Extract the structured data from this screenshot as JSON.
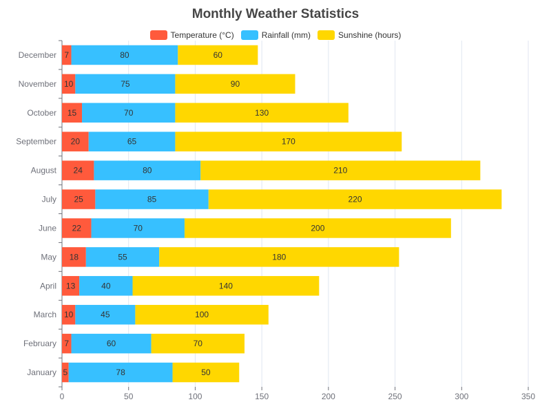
{
  "chart_data": {
    "type": "bar",
    "orientation": "horizontal",
    "stacked": true,
    "title": "Monthly Weather Statistics",
    "categories": [
      "January",
      "February",
      "March",
      "April",
      "May",
      "June",
      "July",
      "August",
      "September",
      "October",
      "November",
      "December"
    ],
    "series": [
      {
        "name": "Temperature (°C)",
        "color": "#ff5a3c",
        "values": [
          5,
          7,
          10,
          13,
          18,
          22,
          25,
          24,
          20,
          15,
          10,
          7
        ]
      },
      {
        "name": "Rainfall (mm)",
        "color": "#37c0ff",
        "values": [
          78,
          60,
          45,
          40,
          55,
          70,
          85,
          80,
          65,
          70,
          75,
          80
        ]
      },
      {
        "name": "Sunshine (hours)",
        "color": "#ffd700",
        "values": [
          50,
          70,
          100,
          140,
          180,
          200,
          220,
          210,
          170,
          130,
          90,
          60
        ]
      }
    ],
    "xlim": [
      0,
      350
    ],
    "x_ticks": [
      0,
      50,
      100,
      150,
      200,
      250,
      300,
      350
    ],
    "grid": true,
    "legend_position": "top-center",
    "data_labels": true
  }
}
